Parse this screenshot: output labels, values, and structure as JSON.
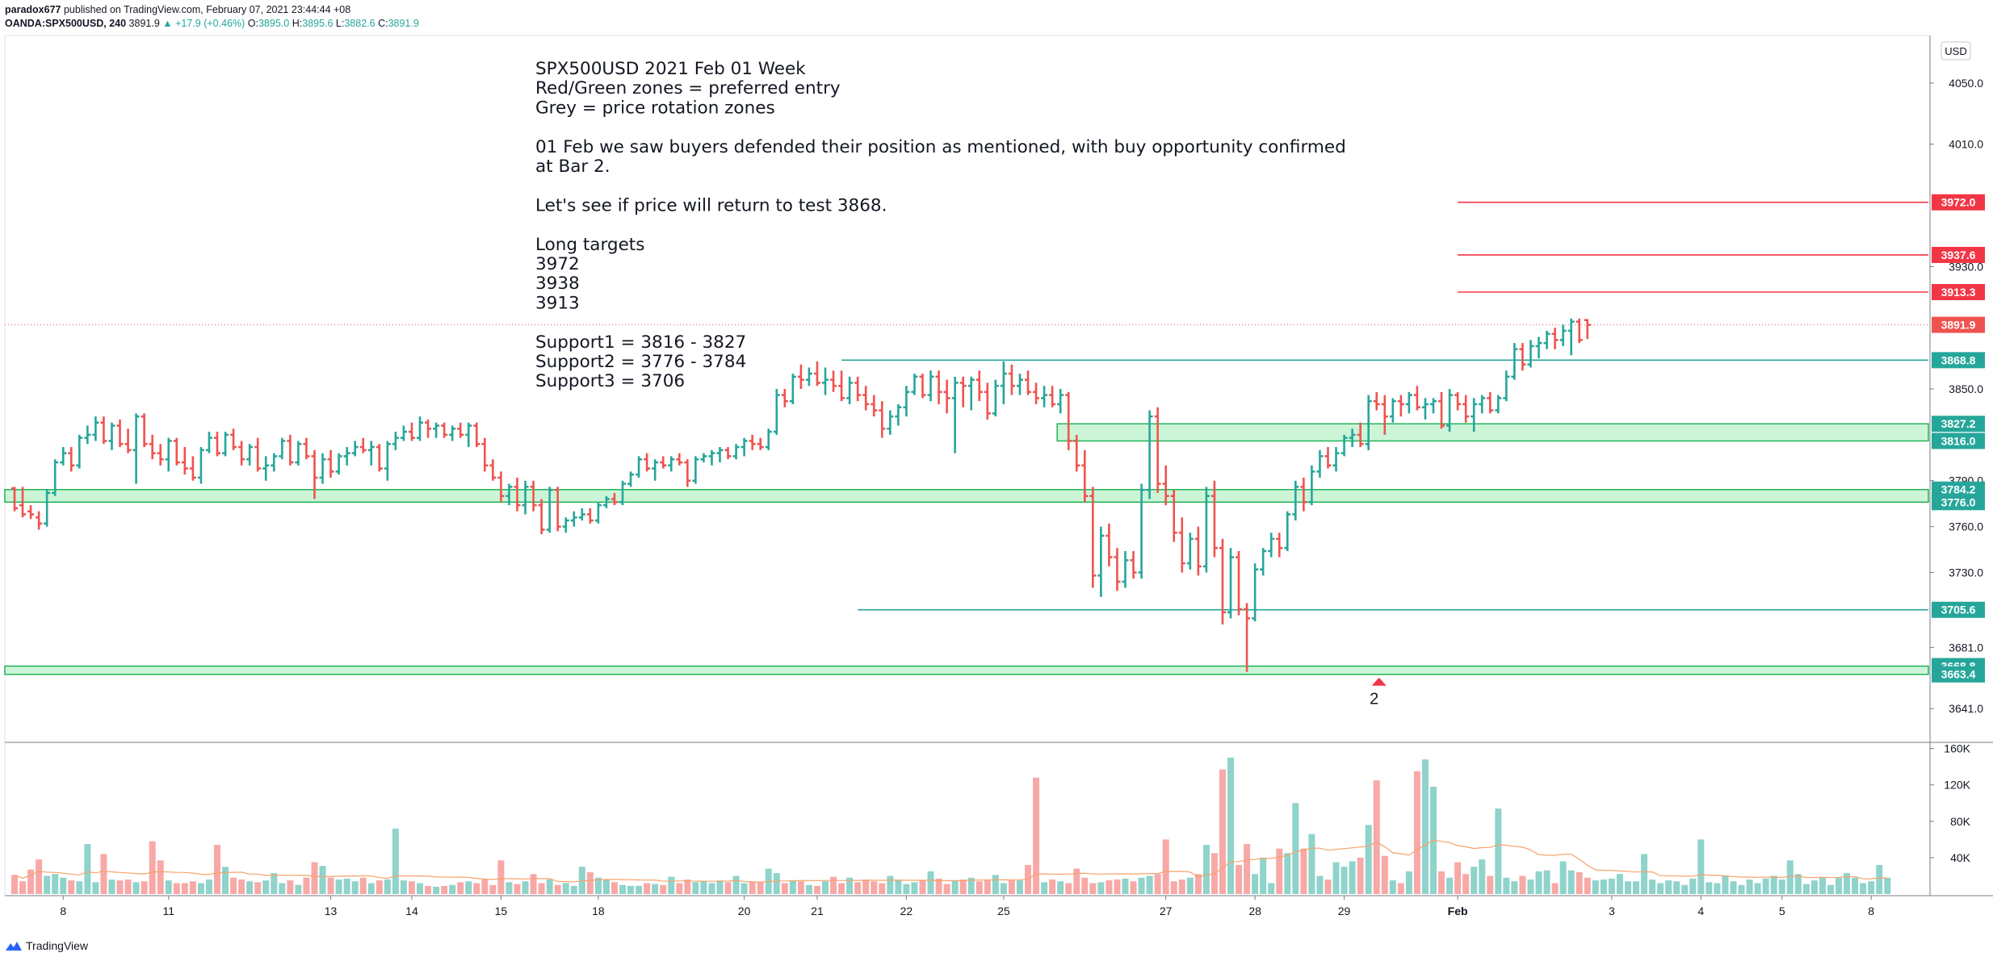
{
  "header": {
    "author": "paradox677",
    "published_text": "published on TradingView.com, February 07, 2021 23:44:44 +08",
    "symbol": "OANDA:SPX500USD, 240",
    "last": "3891.9",
    "change": "▲ +17.9 (+0.46%)",
    "o_label": "O:",
    "o_value": "3895.0",
    "h_label": "H:",
    "h_value": "3895.6",
    "l_label": "L:",
    "l_value": "3882.6",
    "c_label": "C:",
    "c_value": "3891.9"
  },
  "currency": "USD",
  "annotation": {
    "lines": [
      "SPX500USD  2021 Feb 01 Week",
      "Red/Green zones = preferred entry",
      "Grey = price rotation zones",
      "",
      "01 Feb we saw buyers defended their position as mentioned, with buy opportunity confirmed",
      "at Bar 2.",
      "",
      "Let's see if price will return to test 3868.",
      "",
      "Long targets",
      "3972",
      "3938",
      "3913",
      "",
      "Support1 = 3816 - 3827",
      "Support2 = 3776 - 3784",
      "Support3 = 3706"
    ]
  },
  "bar_marker": "2",
  "footer": {
    "brand": "TradingView"
  },
  "colors": {
    "up": "#26a69a",
    "down": "#ef5350",
    "zone": "#ccf5d8",
    "zone_border": "#22b455",
    "resistance": "#f23645",
    "ma": "#f7a26b"
  },
  "chart_data": {
    "type": "ohlc",
    "price_axis": {
      "ticks": [
        4050.0,
        4010.0,
        3930.0,
        3850.0,
        3790.0,
        3760.0,
        3730.0,
        3681.0,
        3641.0
      ],
      "range": [
        3620,
        4080
      ]
    },
    "volume_axis": {
      "ticks": [
        "40K",
        "80K",
        "120K",
        "160K"
      ],
      "tick_values": [
        40000,
        80000,
        120000,
        160000
      ],
      "range": [
        0,
        165000
      ]
    },
    "time_labels": [
      "8",
      "11",
      "13",
      "14",
      "15",
      "18",
      "20",
      "21",
      "22",
      "25",
      "27",
      "28",
      "29",
      "Feb",
      "3",
      "4",
      "5",
      "8"
    ],
    "time_label_index": [
      6,
      19,
      39,
      49,
      60,
      72,
      90,
      99,
      110,
      122,
      142,
      153,
      164,
      178,
      197,
      208,
      218,
      229
    ],
    "level_lines": [
      {
        "value": 3972.0,
        "label": "3972.0",
        "kind": "resistance",
        "from": 178
      },
      {
        "value": 3937.6,
        "label": "3937.6",
        "kind": "resistance",
        "from": 178
      },
      {
        "value": 3913.3,
        "label": "3913.3",
        "kind": "resistance",
        "from": 178
      },
      {
        "value": 3868.8,
        "label": "3868.8",
        "kind": "support",
        "from": 102
      },
      {
        "value": 3705.6,
        "label": "3705.6",
        "kind": "support",
        "from": 104
      }
    ],
    "zones": [
      {
        "low": 3816.0,
        "high": 3827.2,
        "from": 129,
        "labels": [
          "3827.2",
          "3816.0"
        ]
      },
      {
        "low": 3776.0,
        "high": 3784.2,
        "from": 0,
        "labels": [
          "3784.2",
          "3776.0"
        ]
      },
      {
        "low": 3663.4,
        "high": 3668.8,
        "from": 0,
        "labels": [
          "3668.8",
          "3663.4"
        ]
      }
    ],
    "last_price": {
      "value": 3891.9,
      "label": "3891.9"
    },
    "bars": [
      [
        3785,
        3786,
        3770,
        3772
      ],
      [
        3774,
        3786,
        3766,
        3768
      ],
      [
        3770,
        3774,
        3765,
        3768
      ],
      [
        3766,
        3770,
        3758,
        3762
      ],
      [
        3762,
        3784,
        3760,
        3782
      ],
      [
        3782,
        3804,
        3780,
        3802
      ],
      [
        3802,
        3812,
        3800,
        3808
      ],
      [
        3808,
        3812,
        3796,
        3800
      ],
      [
        3800,
        3820,
        3798,
        3818
      ],
      [
        3818,
        3826,
        3814,
        3820
      ],
      [
        3820,
        3832,
        3816,
        3828
      ],
      [
        3828,
        3832,
        3814,
        3816
      ],
      [
        3816,
        3828,
        3810,
        3826
      ],
      [
        3826,
        3830,
        3812,
        3814
      ],
      [
        3814,
        3824,
        3808,
        3810
      ],
      [
        3810,
        3834,
        3788,
        3832
      ],
      [
        3832,
        3834,
        3812,
        3814
      ],
      [
        3814,
        3820,
        3804,
        3808
      ],
      [
        3808,
        3814,
        3800,
        3804
      ],
      [
        3804,
        3818,
        3796,
        3816
      ],
      [
        3816,
        3818,
        3800,
        3802
      ],
      [
        3802,
        3812,
        3794,
        3798
      ],
      [
        3798,
        3806,
        3790,
        3792
      ],
      [
        3792,
        3812,
        3788,
        3810
      ],
      [
        3810,
        3822,
        3808,
        3818
      ],
      [
        3818,
        3822,
        3806,
        3808
      ],
      [
        3808,
        3822,
        3806,
        3820
      ],
      [
        3820,
        3824,
        3810,
        3812
      ],
      [
        3812,
        3816,
        3800,
        3804
      ],
      [
        3804,
        3814,
        3800,
        3812
      ],
      [
        3812,
        3818,
        3796,
        3798
      ],
      [
        3798,
        3806,
        3790,
        3800
      ],
      [
        3800,
        3808,
        3796,
        3806
      ],
      [
        3806,
        3818,
        3804,
        3816
      ],
      [
        3816,
        3820,
        3800,
        3802
      ],
      [
        3802,
        3816,
        3800,
        3814
      ],
      [
        3814,
        3818,
        3804,
        3806
      ],
      [
        3806,
        3810,
        3778,
        3792
      ],
      [
        3792,
        3808,
        3788,
        3804
      ],
      [
        3804,
        3810,
        3792,
        3796
      ],
      [
        3796,
        3808,
        3794,
        3806
      ],
      [
        3806,
        3812,
        3800,
        3808
      ],
      [
        3808,
        3816,
        3806,
        3812
      ],
      [
        3812,
        3818,
        3808,
        3810
      ],
      [
        3810,
        3816,
        3800,
        3812
      ],
      [
        3812,
        3814,
        3796,
        3798
      ],
      [
        3798,
        3816,
        3790,
        3814
      ],
      [
        3814,
        3822,
        3810,
        3818
      ],
      [
        3818,
        3826,
        3816,
        3822
      ],
      [
        3822,
        3828,
        3816,
        3818
      ],
      [
        3818,
        3832,
        3816,
        3828
      ],
      [
        3828,
        3830,
        3818,
        3824
      ],
      [
        3824,
        3828,
        3818,
        3826
      ],
      [
        3826,
        3828,
        3818,
        3820
      ],
      [
        3820,
        3826,
        3816,
        3824
      ],
      [
        3824,
        3828,
        3818,
        3820
      ],
      [
        3820,
        3828,
        3812,
        3826
      ],
      [
        3826,
        3828,
        3812,
        3814
      ],
      [
        3814,
        3818,
        3796,
        3800
      ],
      [
        3800,
        3804,
        3790,
        3792
      ],
      [
        3792,
        3796,
        3776,
        3780
      ],
      [
        3780,
        3788,
        3774,
        3786
      ],
      [
        3786,
        3792,
        3770,
        3774
      ],
      [
        3774,
        3790,
        3768,
        3786
      ],
      [
        3786,
        3790,
        3770,
        3774
      ],
      [
        3774,
        3778,
        3755,
        3758
      ],
      [
        3758,
        3786,
        3756,
        3784
      ],
      [
        3784,
        3786,
        3757,
        3760
      ],
      [
        3760,
        3766,
        3756,
        3764
      ],
      [
        3764,
        3770,
        3760,
        3766
      ],
      [
        3766,
        3772,
        3764,
        3768
      ],
      [
        3768,
        3772,
        3762,
        3764
      ],
      [
        3764,
        3776,
        3762,
        3774
      ],
      [
        3774,
        3780,
        3772,
        3778
      ],
      [
        3778,
        3782,
        3774,
        3776
      ],
      [
        3776,
        3790,
        3774,
        3788
      ],
      [
        3788,
        3796,
        3786,
        3794
      ],
      [
        3794,
        3806,
        3792,
        3804
      ],
      [
        3804,
        3808,
        3796,
        3798
      ],
      [
        3798,
        3804,
        3790,
        3802
      ],
      [
        3802,
        3806,
        3798,
        3800
      ],
      [
        3800,
        3806,
        3796,
        3804
      ],
      [
        3804,
        3808,
        3800,
        3802
      ],
      [
        3802,
        3804,
        3786,
        3790
      ],
      [
        3790,
        3806,
        3788,
        3804
      ],
      [
        3804,
        3808,
        3802,
        3806
      ],
      [
        3806,
        3810,
        3800,
        3808
      ],
      [
        3808,
        3812,
        3802,
        3810
      ],
      [
        3810,
        3812,
        3804,
        3806
      ],
      [
        3806,
        3814,
        3804,
        3812
      ],
      [
        3812,
        3818,
        3806,
        3816
      ],
      [
        3816,
        3820,
        3810,
        3814
      ],
      [
        3814,
        3818,
        3810,
        3812
      ],
      [
        3812,
        3824,
        3810,
        3822
      ],
      [
        3822,
        3850,
        3820,
        3846
      ],
      [
        3846,
        3850,
        3838,
        3842
      ],
      [
        3842,
        3860,
        3840,
        3858
      ],
      [
        3858,
        3866,
        3850,
        3856
      ],
      [
        3856,
        3864,
        3852,
        3860
      ],
      [
        3860,
        3868,
        3852,
        3854
      ],
      [
        3854,
        3864,
        3846,
        3856
      ],
      [
        3856,
        3862,
        3848,
        3852
      ],
      [
        3852,
        3862,
        3842,
        3844
      ],
      [
        3844,
        3858,
        3840,
        3854
      ],
      [
        3854,
        3858,
        3842,
        3846
      ],
      [
        3846,
        3852,
        3836,
        3840
      ],
      [
        3840,
        3846,
        3832,
        3836
      ],
      [
        3836,
        3842,
        3818,
        3824
      ],
      [
        3824,
        3836,
        3820,
        3832
      ],
      [
        3832,
        3840,
        3826,
        3838
      ],
      [
        3838,
        3852,
        3832,
        3848
      ],
      [
        3848,
        3860,
        3846,
        3858
      ],
      [
        3858,
        3860,
        3844,
        3846
      ],
      [
        3846,
        3862,
        3842,
        3858
      ],
      [
        3858,
        3862,
        3840,
        3848
      ],
      [
        3848,
        3856,
        3834,
        3844
      ],
      [
        3844,
        3858,
        3808,
        3854
      ],
      [
        3854,
        3858,
        3838,
        3852
      ],
      [
        3852,
        3858,
        3836,
        3856
      ],
      [
        3856,
        3862,
        3842,
        3848
      ],
      [
        3848,
        3854,
        3830,
        3834
      ],
      [
        3834,
        3856,
        3832,
        3852
      ],
      [
        3852,
        3868,
        3840,
        3860
      ],
      [
        3860,
        3866,
        3846,
        3852
      ],
      [
        3852,
        3860,
        3846,
        3856
      ],
      [
        3856,
        3862,
        3846,
        3848
      ],
      [
        3848,
        3854,
        3840,
        3844
      ],
      [
        3844,
        3852,
        3838,
        3846
      ],
      [
        3846,
        3852,
        3838,
        3840
      ],
      [
        3840,
        3850,
        3834,
        3846
      ],
      [
        3846,
        3848,
        3810,
        3816
      ],
      [
        3816,
        3820,
        3796,
        3800
      ],
      [
        3800,
        3810,
        3776,
        3780
      ],
      [
        3780,
        3786,
        3720,
        3728
      ],
      [
        3728,
        3760,
        3714,
        3754
      ],
      [
        3754,
        3762,
        3734,
        3740
      ],
      [
        3740,
        3746,
        3718,
        3724
      ],
      [
        3724,
        3744,
        3720,
        3738
      ],
      [
        3738,
        3744,
        3726,
        3730
      ],
      [
        3730,
        3788,
        3726,
        3784
      ],
      [
        3784,
        3836,
        3778,
        3832
      ],
      [
        3832,
        3838,
        3782,
        3788
      ],
      [
        3788,
        3800,
        3774,
        3780
      ],
      [
        3780,
        3784,
        3750,
        3756
      ],
      [
        3756,
        3766,
        3730,
        3736
      ],
      [
        3736,
        3756,
        3732,
        3752
      ],
      [
        3752,
        3760,
        3728,
        3734
      ],
      [
        3734,
        3786,
        3730,
        3780
      ],
      [
        3780,
        3790,
        3740,
        3746
      ],
      [
        3746,
        3752,
        3696,
        3704
      ],
      [
        3704,
        3746,
        3700,
        3740
      ],
      [
        3740,
        3744,
        3702,
        3706
      ],
      [
        3706,
        3710,
        3665,
        3700
      ],
      [
        3700,
        3736,
        3698,
        3732
      ],
      [
        3732,
        3746,
        3728,
        3744
      ],
      [
        3744,
        3756,
        3740,
        3752
      ],
      [
        3752,
        3756,
        3740,
        3746
      ],
      [
        3746,
        3770,
        3744,
        3768
      ],
      [
        3768,
        3790,
        3764,
        3786
      ],
      [
        3786,
        3792,
        3770,
        3776
      ],
      [
        3776,
        3800,
        3774,
        3796
      ],
      [
        3796,
        3810,
        3792,
        3806
      ],
      [
        3806,
        3812,
        3798,
        3800
      ],
      [
        3800,
        3812,
        3796,
        3808
      ],
      [
        3808,
        3820,
        3806,
        3818
      ],
      [
        3818,
        3824,
        3812,
        3820
      ],
      [
        3820,
        3828,
        3812,
        3814
      ],
      [
        3814,
        3846,
        3810,
        3842
      ],
      [
        3842,
        3848,
        3836,
        3840
      ],
      [
        3840,
        3846,
        3820,
        3832
      ],
      [
        3832,
        3844,
        3828,
        3842
      ],
      [
        3842,
        3846,
        3832,
        3840
      ],
      [
        3840,
        3848,
        3834,
        3846
      ],
      [
        3846,
        3852,
        3836,
        3838
      ],
      [
        3838,
        3844,
        3830,
        3840
      ],
      [
        3840,
        3844,
        3834,
        3842
      ],
      [
        3842,
        3848,
        3824,
        3826
      ],
      [
        3826,
        3850,
        3822,
        3846
      ],
      [
        3846,
        3848,
        3836,
        3840
      ],
      [
        3840,
        3846,
        3828,
        3832
      ],
      [
        3832,
        3844,
        3822,
        3840
      ],
      [
        3840,
        3846,
        3834,
        3844
      ],
      [
        3844,
        3848,
        3834,
        3836
      ],
      [
        3836,
        3846,
        3834,
        3844
      ],
      [
        3844,
        3862,
        3842,
        3858
      ],
      [
        3858,
        3880,
        3856,
        3876
      ],
      [
        3876,
        3880,
        3862,
        3866
      ],
      [
        3866,
        3882,
        3864,
        3878
      ],
      [
        3878,
        3884,
        3870,
        3880
      ],
      [
        3880,
        3888,
        3876,
        3886
      ],
      [
        3886,
        3890,
        3876,
        3882
      ],
      [
        3882,
        3892,
        3878,
        3888
      ],
      [
        3888,
        3896,
        3872,
        3894
      ],
      [
        3894,
        3896,
        3880,
        3882
      ],
      [
        3895,
        3895.6,
        3882.6,
        3891.9
      ]
    ],
    "volume": [
      21,
      14,
      27,
      38,
      20,
      22,
      18,
      15,
      14,
      55,
      13,
      44,
      16,
      15,
      16,
      13,
      14,
      58,
      37,
      15,
      12,
      12,
      14,
      12,
      16,
      54,
      30,
      18,
      16,
      14,
      13,
      15,
      23,
      12,
      15,
      10,
      18,
      35,
      31,
      18,
      16,
      17,
      14,
      18,
      12,
      15,
      16,
      72,
      15,
      14,
      12,
      9,
      8,
      9,
      10,
      13,
      14,
      12,
      16,
      10,
      37,
      13,
      11,
      14,
      22,
      12,
      16,
      10,
      12,
      9,
      30,
      24,
      18,
      16,
      13,
      10,
      9,
      9,
      12,
      11,
      10,
      19,
      12,
      16,
      13,
      14,
      12,
      15,
      13,
      20,
      12,
      14,
      13,
      28,
      23,
      12,
      15,
      14,
      10,
      9,
      14,
      19,
      12,
      18,
      13,
      16,
      14,
      12,
      20,
      16,
      11,
      13,
      15,
      25,
      17,
      11,
      15,
      16,
      18,
      14,
      15,
      21,
      12,
      16,
      15,
      32,
      128,
      13,
      16,
      14,
      12,
      28,
      18,
      12,
      13,
      15,
      16,
      17,
      14,
      18,
      20,
      22,
      60,
      14,
      16,
      18,
      22,
      54,
      45,
      137,
      150,
      32,
      55,
      22,
      40,
      12,
      50,
      45,
      100,
      50,
      66,
      20,
      16,
      35,
      30,
      36,
      40,
      76,
      125,
      42,
      15,
      12,
      25,
      135,
      148,
      118,
      25,
      18,
      35,
      22,
      30,
      38,
      20,
      94,
      18,
      14,
      20,
      16,
      25,
      26,
      12,
      36,
      26,
      24,
      18,
      15,
      16,
      17,
      22,
      14,
      14,
      44,
      16,
      12,
      15,
      14,
      10,
      17,
      60,
      13,
      12,
      20,
      14,
      10,
      16,
      12,
      17,
      20,
      16,
      37,
      22,
      11,
      15,
      18,
      10,
      18,
      23,
      18,
      12,
      14,
      32,
      18
    ]
  }
}
